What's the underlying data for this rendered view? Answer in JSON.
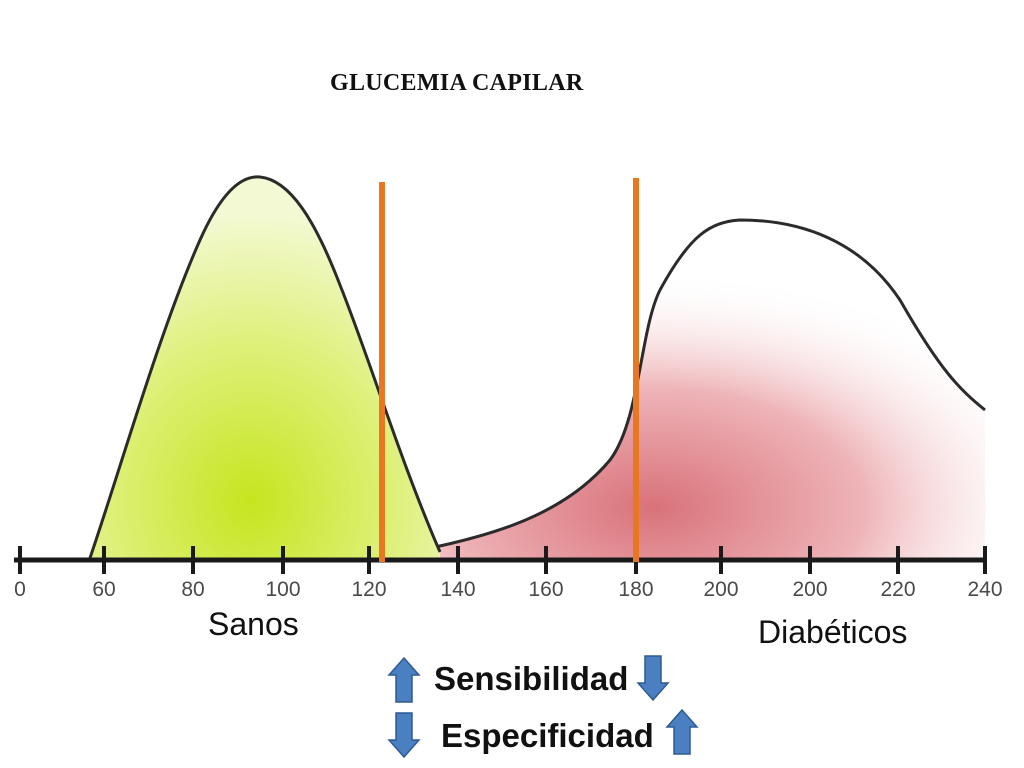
{
  "title": "GLUCEMIA CAPILAR",
  "axis": {
    "tick_labels": [
      "0",
      "60",
      "80",
      "100",
      "120",
      "140",
      "160",
      "180",
      "200",
      "200",
      "220",
      "240"
    ]
  },
  "distributions": {
    "healthy": {
      "label": "Sanos",
      "color": "#c6e51f"
    },
    "diabetic": {
      "label": "Diabéticos",
      "color": "#d9727a"
    }
  },
  "thresholds": {
    "color": "#e87722"
  },
  "effects": [
    {
      "label": "Sensibilidad",
      "left_arrow": "up-arrow-icon",
      "right_arrow": "down-arrow-icon"
    },
    {
      "label": "Especificidad",
      "left_arrow": "down-arrow-icon",
      "right_arrow": "up-arrow-icon"
    }
  ],
  "arrow_color": "#4a7fc1"
}
